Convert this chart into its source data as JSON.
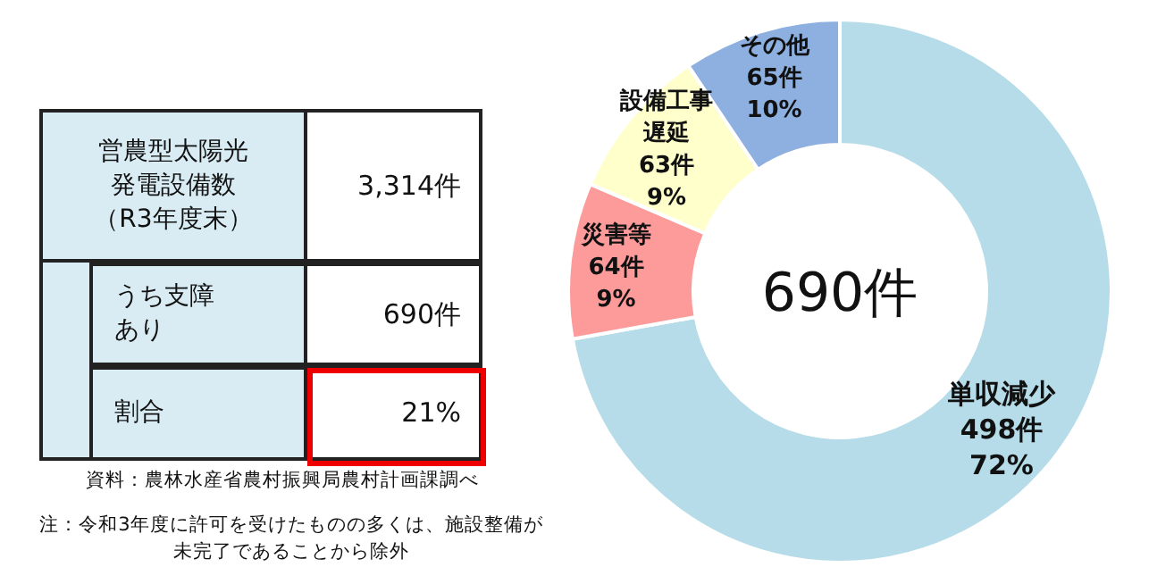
{
  "chart_data": [
    {
      "type": "other",
      "categories": [
        "営農型太陽光発電設備数（R3年度末）",
        "うち支障あり",
        "割合"
      ],
      "value_labels": [
        "3,314件",
        "690件",
        "21%"
      ],
      "annotations": [
        "資料：農林水産省農村振興局農村計画課調べ",
        "注：令和3年度に許可を受けたものの多くは、施設整備が未完了であることから除外"
      ]
    },
    {
      "type": "donut",
      "categories": [
        "単収減少",
        "災害等",
        "設備工事遅延",
        "その他"
      ],
      "values": [
        498,
        64,
        63,
        65
      ],
      "colors": [
        "#b5dce8",
        "#fd9b9b",
        "#ffffcc",
        "#8db0e0"
      ],
      "value_labels": [
        "498件\n72%",
        "64件\n9%",
        "63件\n9%",
        "65件\n10%"
      ],
      "annotations": [
        "690件"
      ]
    }
  ]
}
